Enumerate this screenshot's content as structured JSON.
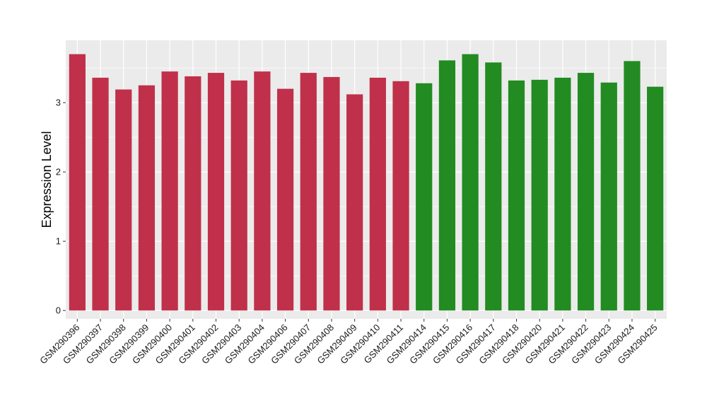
{
  "chart_data": {
    "type": "bar",
    "title": "",
    "xlabel": "",
    "ylabel": "Expression Level",
    "ylim": [
      -0.12,
      3.9
    ],
    "yticks": [
      0,
      1,
      2,
      3
    ],
    "grid": true,
    "panel_background": "#ebebeb",
    "grid_color": "#ffffff",
    "categories": [
      "GSM290396",
      "GSM290397",
      "GSM290398",
      "GSM290399",
      "GSM290400",
      "GSM290401",
      "GSM290402",
      "GSM290403",
      "GSM290404",
      "GSM290406",
      "GSM290407",
      "GSM290408",
      "GSM290409",
      "GSM290410",
      "GSM290411",
      "GSM290414",
      "GSM290415",
      "GSM290416",
      "GSM290417",
      "GSM290418",
      "GSM290420",
      "GSM290421",
      "GSM290422",
      "GSM290423",
      "GSM290424",
      "GSM290425"
    ],
    "values": [
      3.7,
      3.36,
      3.19,
      3.25,
      3.45,
      3.38,
      3.43,
      3.32,
      3.45,
      3.2,
      3.43,
      3.37,
      3.12,
      3.36,
      3.31,
      3.28,
      3.61,
      3.7,
      3.58,
      3.32,
      3.33,
      3.36,
      3.43,
      3.29,
      3.6,
      3.23
    ],
    "bar_colors": [
      "#c0304a",
      "#c0304a",
      "#c0304a",
      "#c0304a",
      "#c0304a",
      "#c0304a",
      "#c0304a",
      "#c0304a",
      "#c0304a",
      "#c0304a",
      "#c0304a",
      "#c0304a",
      "#c0304a",
      "#c0304a",
      "#c0304a",
      "#228b22",
      "#228b22",
      "#228b22",
      "#228b22",
      "#228b22",
      "#228b22",
      "#228b22",
      "#228b22",
      "#228b22",
      "#228b22",
      "#228b22"
    ]
  }
}
